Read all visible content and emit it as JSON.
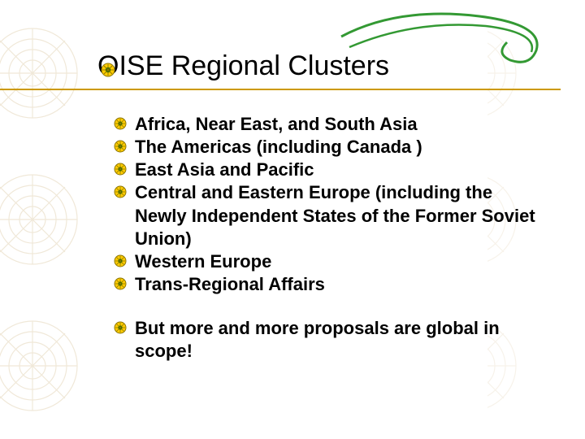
{
  "title": "OISE Regional Clusters",
  "underline_color": "#cc9900",
  "swirl_color": "#339933",
  "bullet_colors": {
    "outer": "#8b7500",
    "inner": "#ffcc00",
    "dot": "#006600"
  },
  "pattern_color": "#f0e8d8",
  "items_a": [
    "Africa, Near East, and South Asia",
    "The Americas (including Canada )",
    "East Asia and Pacific",
    "Central and Eastern Europe (including the Newly Independent States of the Former Soviet Union)",
    "Western Europe",
    "Trans-Regional Affairs"
  ],
  "items_b": [
    "But more and more proposals are global in scope!"
  ]
}
